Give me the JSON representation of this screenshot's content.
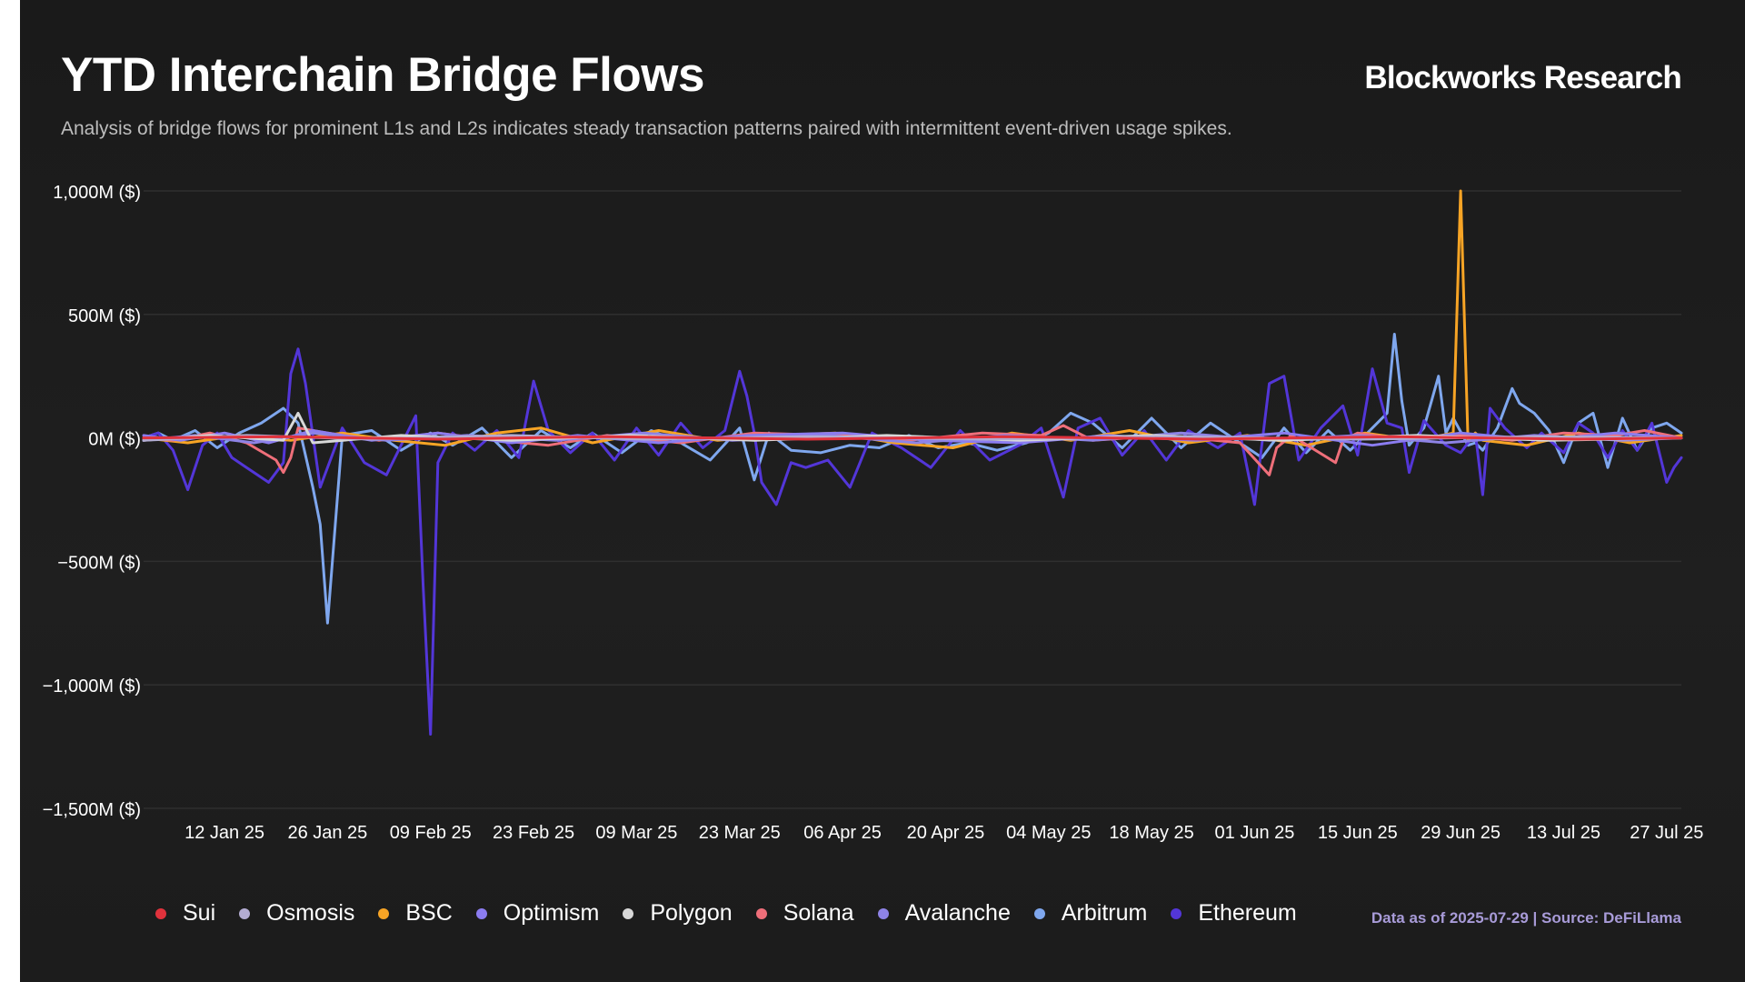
{
  "header": {
    "title": "YTD Interchain Bridge Flows",
    "subtitle": "Analysis of bridge flows for prominent L1s and L2s indicates steady transaction patterns paired with intermittent event-driven usage spikes.",
    "brand": "Blockworks Research"
  },
  "footer": {
    "source": "Data as of 2025-07-29 | Source: DeFiLlama"
  },
  "colors": {
    "background": "#1c1c1c",
    "gridline": "#2f2f2f",
    "text": "#ffffff"
  },
  "chart_data": {
    "type": "line",
    "title": "YTD Interchain Bridge Flows",
    "xlabel": "",
    "ylabel": "",
    "xlim": [
      "2025-01-01",
      "2025-07-29"
    ],
    "ylim": [
      -1500,
      1000
    ],
    "y_unit": "M ($)",
    "y_ticks": [
      1000,
      500,
      0,
      -500,
      -1000,
      -1500
    ],
    "y_tick_labels": [
      "1,000M ($)",
      "500M ($)",
      "0M ($)",
      "−500M ($)",
      "−1,000M ($)",
      "−1,500M ($)"
    ],
    "x_ticks": [
      "2025-01-12",
      "2025-01-26",
      "2025-02-09",
      "2025-02-23",
      "2025-03-09",
      "2025-03-23",
      "2025-04-06",
      "2025-04-20",
      "2025-05-04",
      "2025-05-18",
      "2025-06-01",
      "2025-06-15",
      "2025-06-29",
      "2025-07-13",
      "2025-07-27"
    ],
    "x_tick_labels": [
      "12 Jan 25",
      "26 Jan 25",
      "09 Feb 25",
      "23 Feb 25",
      "09 Mar 25",
      "23 Mar 25",
      "06 Apr 25",
      "20 Apr 25",
      "04 May 25",
      "18 May 25",
      "01 Jun 25",
      "15 Jun 25",
      "29 Jun 25",
      "13 Jul 25",
      "27 Jul 25"
    ],
    "grid": true,
    "legend_position": "bottom-left",
    "series": [
      {
        "name": "Arbitrum",
        "color": "#7fa7ee",
        "x": [
          "2025-01-01",
          "2025-01-03",
          "2025-01-05",
          "2025-01-08",
          "2025-01-11",
          "2025-01-14",
          "2025-01-17",
          "2025-01-20",
          "2025-01-22",
          "2025-01-24",
          "2025-01-25",
          "2025-01-26",
          "2025-01-28",
          "2025-02-01",
          "2025-02-05",
          "2025-02-09",
          "2025-02-12",
          "2025-02-16",
          "2025-02-20",
          "2025-02-24",
          "2025-02-28",
          "2025-03-03",
          "2025-03-07",
          "2025-03-11",
          "2025-03-15",
          "2025-03-19",
          "2025-03-23",
          "2025-03-25",
          "2025-03-27",
          "2025-03-30",
          "2025-04-03",
          "2025-04-07",
          "2025-04-11",
          "2025-04-15",
          "2025-04-19",
          "2025-04-23",
          "2025-04-27",
          "2025-05-01",
          "2025-05-04",
          "2025-05-07",
          "2025-05-10",
          "2025-05-14",
          "2025-05-18",
          "2025-05-22",
          "2025-05-26",
          "2025-05-30",
          "2025-06-02",
          "2025-06-05",
          "2025-06-08",
          "2025-06-11",
          "2025-06-14",
          "2025-06-17",
          "2025-06-19",
          "2025-06-20",
          "2025-06-21",
          "2025-06-22",
          "2025-06-24",
          "2025-06-26",
          "2025-06-27",
          "2025-06-28",
          "2025-06-30",
          "2025-07-01",
          "2025-07-02",
          "2025-07-04",
          "2025-07-06",
          "2025-07-07",
          "2025-07-09",
          "2025-07-11",
          "2025-07-13",
          "2025-07-15",
          "2025-07-17",
          "2025-07-19",
          "2025-07-21",
          "2025-07-23",
          "2025-07-25",
          "2025-07-27",
          "2025-07-29"
        ],
        "values": [
          0,
          20,
          -10,
          30,
          -40,
          20,
          60,
          120,
          60,
          -200,
          -350,
          -750,
          10,
          30,
          -50,
          20,
          -30,
          40,
          -80,
          30,
          -40,
          20,
          -60,
          30,
          -20,
          -90,
          40,
          -170,
          20,
          -50,
          -60,
          -30,
          -40,
          10,
          -40,
          -20,
          -50,
          -20,
          20,
          100,
          60,
          -40,
          80,
          -40,
          60,
          -20,
          -80,
          40,
          -60,
          30,
          -50,
          40,
          100,
          420,
          150,
          -30,
          40,
          250,
          20,
          80,
          -30,
          -20,
          -50,
          40,
          200,
          140,
          100,
          30,
          -100,
          60,
          100,
          -120,
          80,
          -50,
          40,
          60,
          20
        ]
      },
      {
        "name": "Ethereum",
        "color": "#5336d8",
        "x": [
          "2025-01-01",
          "2025-01-03",
          "2025-01-05",
          "2025-01-07",
          "2025-01-09",
          "2025-01-11",
          "2025-01-13",
          "2025-01-15",
          "2025-01-18",
          "2025-01-20",
          "2025-01-21",
          "2025-01-22",
          "2025-01-23",
          "2025-01-25",
          "2025-01-28",
          "2025-01-31",
          "2025-02-03",
          "2025-02-05",
          "2025-02-07",
          "2025-02-08",
          "2025-02-09",
          "2025-02-10",
          "2025-02-12",
          "2025-02-15",
          "2025-02-18",
          "2025-02-21",
          "2025-02-23",
          "2025-02-25",
          "2025-02-28",
          "2025-03-03",
          "2025-03-06",
          "2025-03-09",
          "2025-03-12",
          "2025-03-15",
          "2025-03-18",
          "2025-03-21",
          "2025-03-23",
          "2025-03-24",
          "2025-03-25",
          "2025-03-26",
          "2025-03-28",
          "2025-03-30",
          "2025-04-01",
          "2025-04-04",
          "2025-04-07",
          "2025-04-10",
          "2025-04-14",
          "2025-04-18",
          "2025-04-22",
          "2025-04-26",
          "2025-04-30",
          "2025-05-03",
          "2025-05-06",
          "2025-05-08",
          "2025-05-11",
          "2025-05-14",
          "2025-05-17",
          "2025-05-20",
          "2025-05-23",
          "2025-05-27",
          "2025-05-30",
          "2025-06-01",
          "2025-06-03",
          "2025-06-05",
          "2025-06-07",
          "2025-06-10",
          "2025-06-13",
          "2025-06-15",
          "2025-06-17",
          "2025-06-19",
          "2025-06-21",
          "2025-06-22",
          "2025-06-24",
          "2025-06-27",
          "2025-06-29",
          "2025-07-01",
          "2025-07-02",
          "2025-07-03",
          "2025-07-05",
          "2025-07-08",
          "2025-07-10",
          "2025-07-13",
          "2025-07-15",
          "2025-07-17",
          "2025-07-19",
          "2025-07-21",
          "2025-07-23",
          "2025-07-25",
          "2025-07-27",
          "2025-07-28",
          "2025-07-29"
        ],
        "values": [
          0,
          20,
          -50,
          -210,
          -30,
          20,
          -80,
          -120,
          -180,
          -100,
          260,
          360,
          220,
          -200,
          40,
          -100,
          -150,
          -30,
          90,
          -600,
          -1200,
          -100,
          20,
          -50,
          30,
          -80,
          230,
          30,
          -60,
          20,
          -90,
          40,
          -70,
          60,
          -40,
          30,
          270,
          170,
          20,
          -180,
          -270,
          -100,
          -120,
          -90,
          -200,
          20,
          -40,
          -120,
          30,
          -90,
          -30,
          40,
          -240,
          40,
          80,
          -70,
          30,
          -90,
          30,
          -40,
          20,
          -270,
          220,
          250,
          -90,
          40,
          130,
          -70,
          280,
          60,
          40,
          -140,
          70,
          -30,
          -60,
          20,
          -230,
          120,
          40,
          -40,
          20,
          -60,
          60,
          20,
          -80,
          30,
          -50,
          60,
          -180,
          -120,
          -80
        ]
      },
      {
        "name": "BSC",
        "color": "#f7a425",
        "x": [
          "2025-01-01",
          "2025-01-07",
          "2025-01-14",
          "2025-01-21",
          "2025-01-28",
          "2025-02-04",
          "2025-02-11",
          "2025-02-18",
          "2025-02-24",
          "2025-03-03",
          "2025-03-12",
          "2025-03-20",
          "2025-03-28",
          "2025-04-05",
          "2025-04-13",
          "2025-04-21",
          "2025-04-29",
          "2025-05-07",
          "2025-05-15",
          "2025-05-23",
          "2025-05-31",
          "2025-06-08",
          "2025-06-16",
          "2025-06-23",
          "2025-06-28",
          "2025-06-29",
          "2025-06-30",
          "2025-07-01",
          "2025-07-02",
          "2025-07-08",
          "2025-07-15",
          "2025-07-22",
          "2025-07-29"
        ],
        "values": [
          0,
          -20,
          10,
          -10,
          20,
          -10,
          -30,
          20,
          40,
          -20,
          30,
          -10,
          10,
          20,
          -20,
          -40,
          20,
          -10,
          30,
          -20,
          10,
          -30,
          20,
          -10,
          20,
          1000,
          -10,
          20,
          -10,
          -30,
          20,
          -20,
          10
        ]
      },
      {
        "name": "Solana",
        "color": "#ef6f7a",
        "x": [
          "2025-01-01",
          "2025-01-05",
          "2025-01-10",
          "2025-01-15",
          "2025-01-19",
          "2025-01-20",
          "2025-01-21",
          "2025-01-22",
          "2025-01-26",
          "2025-02-02",
          "2025-02-10",
          "2025-02-18",
          "2025-02-25",
          "2025-03-05",
          "2025-03-15",
          "2025-03-25",
          "2025-04-05",
          "2025-04-15",
          "2025-04-25",
          "2025-05-03",
          "2025-05-06",
          "2025-05-10",
          "2025-05-20",
          "2025-05-30",
          "2025-06-03",
          "2025-06-04",
          "2025-06-06",
          "2025-06-12",
          "2025-06-13",
          "2025-06-15",
          "2025-06-22",
          "2025-06-29",
          "2025-07-06",
          "2025-07-13",
          "2025-07-20",
          "2025-07-24",
          "2025-07-29"
        ],
        "values": [
          0,
          -10,
          20,
          -20,
          -90,
          -140,
          -80,
          40,
          20,
          -10,
          20,
          -10,
          -30,
          10,
          -20,
          20,
          10,
          -10,
          20,
          10,
          50,
          -10,
          10,
          -20,
          -150,
          -40,
          10,
          -100,
          -10,
          20,
          -10,
          10,
          -10,
          20,
          10,
          30,
          0
        ]
      },
      {
        "name": "Optimism",
        "color": "#8b7cf0",
        "x": [
          "2025-01-01",
          "2025-01-06",
          "2025-01-12",
          "2025-01-18",
          "2025-01-24",
          "2025-02-01",
          "2025-02-10",
          "2025-02-20",
          "2025-03-01",
          "2025-03-12",
          "2025-03-24",
          "2025-04-06",
          "2025-04-18",
          "2025-04-30",
          "2025-05-12",
          "2025-05-24",
          "2025-06-05",
          "2025-06-17",
          "2025-06-29",
          "2025-07-10",
          "2025-07-20",
          "2025-07-29"
        ],
        "values": [
          10,
          -10,
          20,
          -20,
          30,
          -10,
          20,
          -20,
          10,
          -20,
          10,
          20,
          -10,
          -20,
          10,
          -10,
          20,
          -30,
          20,
          -10,
          20,
          0
        ]
      },
      {
        "name": "Avalanche",
        "color": "#8e83e6",
        "x": [
          "2025-01-01",
          "2025-01-08",
          "2025-01-16",
          "2025-01-24",
          "2025-02-03",
          "2025-02-14",
          "2025-02-26",
          "2025-03-10",
          "2025-03-22",
          "2025-04-04",
          "2025-04-16",
          "2025-04-28",
          "2025-05-10",
          "2025-05-22",
          "2025-06-03",
          "2025-06-15",
          "2025-06-27",
          "2025-07-09",
          "2025-07-21",
          "2025-07-29"
        ],
        "values": [
          -10,
          10,
          -20,
          20,
          -10,
          10,
          -10,
          20,
          -10,
          10,
          -20,
          10,
          -10,
          20,
          -10,
          10,
          -20,
          10,
          -10,
          0
        ]
      },
      {
        "name": "Polygon",
        "color": "#d8d8d8",
        "x": [
          "2025-01-01",
          "2025-01-10",
          "2025-01-20",
          "2025-01-22",
          "2025-01-24",
          "2025-02-05",
          "2025-02-20",
          "2025-03-08",
          "2025-03-25",
          "2025-04-12",
          "2025-04-30",
          "2025-05-18",
          "2025-06-05",
          "2025-06-23",
          "2025-07-11",
          "2025-07-29"
        ],
        "values": [
          -10,
          10,
          -10,
          100,
          -20,
          10,
          -10,
          10,
          -10,
          10,
          -10,
          10,
          -10,
          10,
          -10,
          0
        ]
      },
      {
        "name": "Osmosis",
        "color": "#b3acd2",
        "x": [
          "2025-01-01",
          "2025-01-15",
          "2025-02-01",
          "2025-02-20",
          "2025-03-10",
          "2025-04-01",
          "2025-04-25",
          "2025-05-20",
          "2025-06-15",
          "2025-07-10",
          "2025-07-29"
        ],
        "values": [
          -10,
          10,
          -5,
          10,
          -5,
          5,
          -5,
          5,
          -5,
          5,
          0
        ]
      },
      {
        "name": "Sui",
        "color": "#e0323c",
        "x": [
          "2025-01-01",
          "2025-01-20",
          "2025-02-10",
          "2025-03-05",
          "2025-04-01",
          "2025-04-28",
          "2025-05-25",
          "2025-06-20",
          "2025-07-15",
          "2025-07-29"
        ],
        "values": [
          0,
          5,
          -5,
          5,
          -5,
          5,
          -5,
          5,
          -5,
          0
        ]
      }
    ],
    "legend_order": [
      "Sui",
      "Osmosis",
      "BSC",
      "Optimism",
      "Polygon",
      "Solana",
      "Avalanche",
      "Arbitrum",
      "Ethereum"
    ],
    "draw_order": [
      "Arbitrum",
      "Ethereum",
      "BSC",
      "Solana",
      "Optimism",
      "Avalanche",
      "Polygon",
      "Osmosis",
      "Sui"
    ]
  }
}
